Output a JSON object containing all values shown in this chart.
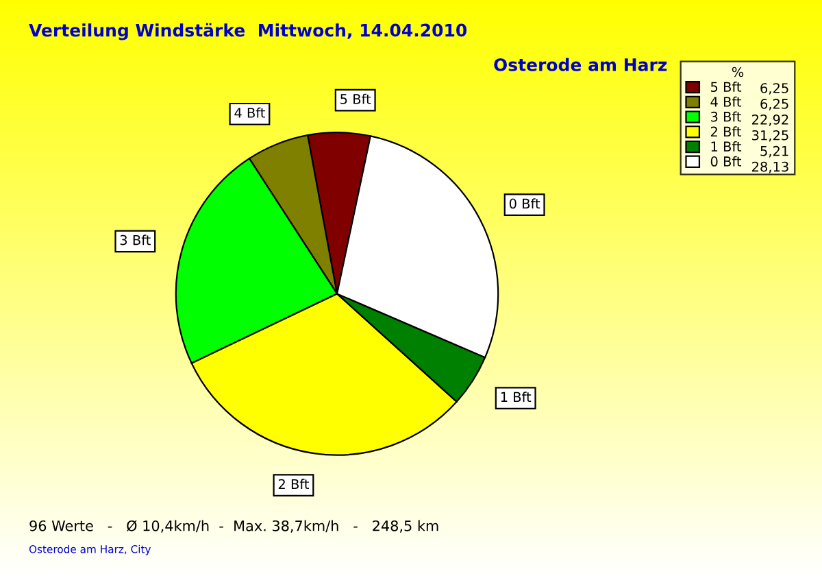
{
  "chart_data": {
    "type": "pie",
    "title": "Verteilung Windstärke  Mittwoch, 14.04.2010",
    "subtitle": "Osterode am Harz",
    "categories": [
      "5 Bft",
      "4 Bft",
      "3 Bft",
      "2 Bft",
      "1 Bft",
      "0 Bft"
    ],
    "values": [
      6.25,
      6.25,
      22.92,
      31.25,
      5.21,
      28.13
    ],
    "value_labels": [
      "6,25",
      "6,25",
      "22,92",
      "31,25",
      "5,21",
      "28,13"
    ],
    "colors": [
      "#800000",
      "#808000",
      "#00ff00",
      "#ffff00",
      "#008000",
      "#ffffff"
    ],
    "legend": "top right",
    "legend_title": "%",
    "annotations": [
      "96 Werte   -   Ø 10,4km/h  -  Max. 38,7km/h   -   248,5 km",
      "Osterode am Harz, City"
    ]
  }
}
